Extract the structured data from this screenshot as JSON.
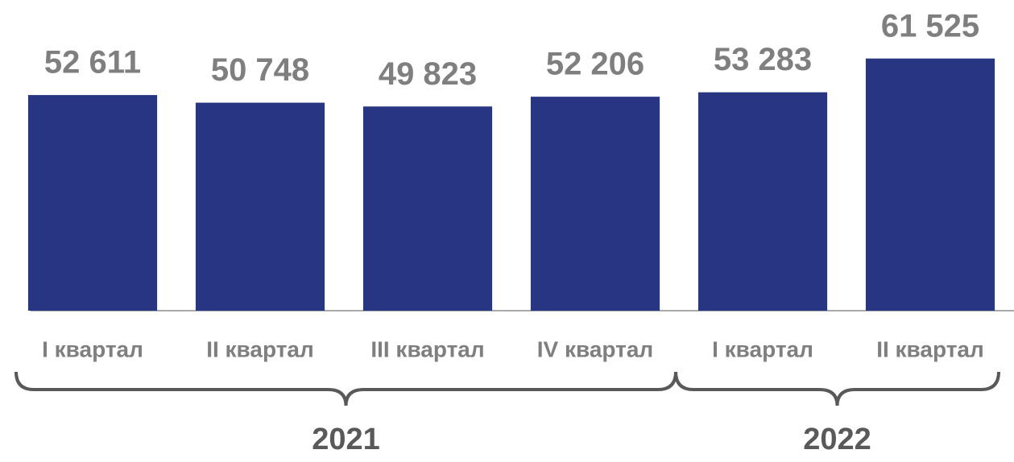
{
  "chart_data": {
    "type": "bar",
    "categories": [
      "I квартал",
      "II квартал",
      "III квартал",
      "IV квартал",
      "I квартал",
      "II квартал"
    ],
    "x_groups": [
      "2021",
      "2021",
      "2021",
      "2021",
      "2022",
      "2022"
    ],
    "values": [
      52611,
      50748,
      49823,
      52206,
      53283,
      61525
    ],
    "value_labels": [
      "52 611",
      "50 748",
      "49 823",
      "52 206",
      "53 283",
      "61 525"
    ],
    "color": "#283583",
    "ylim": [
      0,
      65000
    ]
  }
}
